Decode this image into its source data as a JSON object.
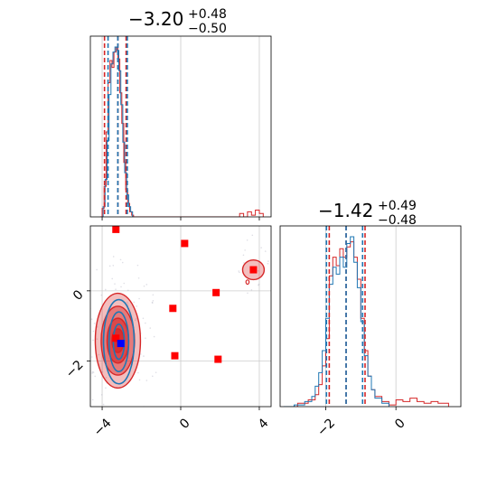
{
  "chart_data": {
    "type": "corner",
    "colors": {
      "blue": "#1f77b4",
      "red": "#d62728",
      "marker_red": "#ff0000",
      "marker_blue": "#0000ff",
      "grid": "#cccccc"
    },
    "params": [
      {
        "title_main": "−3.20",
        "title_sup": "+0.48",
        "title_sub": "−0.50",
        "range": [
          -4.6,
          4.6
        ]
      },
      {
        "title_main": "−1.42",
        "title_sup": "+0.49",
        "title_sub": "−0.48",
        "range": [
          -3.3,
          1.85
        ]
      }
    ],
    "x_ticks": {
      "p0": [
        {
          "v": -4,
          "label": "−4"
        },
        {
          "v": 0,
          "label": "0"
        },
        {
          "v": 4,
          "label": "4"
        }
      ],
      "p1": [
        {
          "v": -2,
          "label": "−2"
        },
        {
          "v": 0,
          "label": "0"
        }
      ]
    },
    "y_ticks": {
      "p1": [
        {
          "v": 0,
          "label": "0"
        },
        {
          "v": -2,
          "label": "−2"
        }
      ]
    },
    "grid": true,
    "hist_p0": {
      "blue_quantiles": [
        -3.7,
        -3.2,
        -2.72
      ],
      "red_quantiles": [
        -3.88,
        -3.2,
        -2.78
      ],
      "blue_bins": [
        [
          -4.0,
          0.0
        ],
        [
          -3.95,
          0.06
        ],
        [
          -3.85,
          0.22
        ],
        [
          -3.75,
          0.45
        ],
        [
          -3.65,
          0.72
        ],
        [
          -3.55,
          0.9
        ],
        [
          -3.45,
          0.97
        ],
        [
          -3.35,
          1.0
        ],
        [
          -3.25,
          0.98
        ],
        [
          -3.15,
          0.86
        ],
        [
          -3.05,
          0.66
        ],
        [
          -2.95,
          0.44
        ],
        [
          -2.85,
          0.26
        ],
        [
          -2.75,
          0.13
        ],
        [
          -2.65,
          0.06
        ],
        [
          -2.55,
          0.03
        ],
        [
          -2.45,
          0.0
        ]
      ],
      "red_bins": [
        [
          -4.1,
          0.0
        ],
        [
          -4.0,
          0.05
        ],
        [
          -3.9,
          0.18
        ],
        [
          -3.8,
          0.5
        ],
        [
          -3.7,
          0.79
        ],
        [
          -3.6,
          0.92
        ],
        [
          -3.5,
          0.88
        ],
        [
          -3.4,
          0.97
        ],
        [
          -3.3,
          1.0
        ],
        [
          -3.2,
          0.93
        ],
        [
          -3.1,
          0.73
        ],
        [
          -3.0,
          0.55
        ],
        [
          -2.9,
          0.32
        ],
        [
          -2.8,
          0.16
        ],
        [
          -2.7,
          0.08
        ],
        [
          -2.6,
          0.03
        ],
        [
          -2.5,
          0.01
        ],
        [
          -2.4,
          0.0
        ],
        [
          2.9,
          0.0
        ],
        [
          3.0,
          0.02
        ],
        [
          3.2,
          0.0
        ],
        [
          3.4,
          0.03
        ],
        [
          3.6,
          0.01
        ],
        [
          3.8,
          0.04
        ],
        [
          4.0,
          0.02
        ],
        [
          4.2,
          0.0
        ]
      ]
    },
    "hist_p1": {
      "blue_quantiles": [
        -1.98,
        -1.42,
        -0.95
      ],
      "red_quantiles": [
        -1.9,
        -1.42,
        -0.88
      ],
      "blue_bins": [
        [
          -3.2,
          0.0
        ],
        [
          -2.9,
          0.01
        ],
        [
          -2.6,
          0.03
        ],
        [
          -2.4,
          0.06
        ],
        [
          -2.3,
          0.12
        ],
        [
          -2.2,
          0.2
        ],
        [
          -2.1,
          0.33
        ],
        [
          -2.0,
          0.52
        ],
        [
          -1.9,
          0.72
        ],
        [
          -1.8,
          0.82
        ],
        [
          -1.7,
          0.78
        ],
        [
          -1.6,
          0.88
        ],
        [
          -1.5,
          0.82
        ],
        [
          -1.4,
          0.96
        ],
        [
          -1.3,
          1.0
        ],
        [
          -1.2,
          0.85
        ],
        [
          -1.1,
          0.7
        ],
        [
          -1.0,
          0.5
        ],
        [
          -0.9,
          0.3
        ],
        [
          -0.8,
          0.18
        ],
        [
          -0.7,
          0.1
        ],
        [
          -0.6,
          0.05
        ],
        [
          -0.4,
          0.02
        ],
        [
          -0.2,
          0.0
        ]
      ],
      "red_bins": [
        [
          -3.2,
          0.0
        ],
        [
          -2.8,
          0.02
        ],
        [
          -2.5,
          0.04
        ],
        [
          -2.3,
          0.07
        ],
        [
          -2.2,
          0.13
        ],
        [
          -2.1,
          0.24
        ],
        [
          -2.0,
          0.4
        ],
        [
          -1.9,
          0.77
        ],
        [
          -1.8,
          0.88
        ],
        [
          -1.7,
          0.83
        ],
        [
          -1.6,
          0.93
        ],
        [
          -1.5,
          0.88
        ],
        [
          -1.4,
          0.94
        ],
        [
          -1.3,
          0.97
        ],
        [
          -1.2,
          0.88
        ],
        [
          -1.1,
          0.75
        ],
        [
          -1.0,
          0.52
        ],
        [
          -0.9,
          0.33
        ],
        [
          -0.8,
          0.18
        ],
        [
          -0.7,
          0.1
        ],
        [
          -0.6,
          0.06
        ],
        [
          -0.4,
          0.03
        ],
        [
          -0.2,
          0.01
        ],
        [
          0.0,
          0.04
        ],
        [
          0.2,
          0.03
        ],
        [
          0.4,
          0.05
        ],
        [
          0.6,
          0.03
        ],
        [
          0.8,
          0.02
        ],
        [
          1.0,
          0.03
        ],
        [
          1.2,
          0.02
        ],
        [
          1.5,
          0.0
        ]
      ]
    },
    "scatter_2d": {
      "red_fill_levels": [
        {
          "cx": -3.2,
          "cy": -1.42,
          "rx": 1.15,
          "ry": 1.35,
          "opacity": 0.3
        },
        {
          "cx": -3.2,
          "cy": -1.42,
          "rx": 0.85,
          "ry": 0.98,
          "opacity": 0.45
        },
        {
          "cx": -3.2,
          "cy": -1.42,
          "rx": 0.55,
          "ry": 0.64,
          "opacity": 0.6
        },
        {
          "cx": -3.2,
          "cy": -1.42,
          "rx": 0.3,
          "ry": 0.34,
          "opacity": 0.75
        }
      ],
      "blue_levels": [
        {
          "cx": -3.15,
          "cy": -1.45,
          "rx": 0.78,
          "ry": 1.2
        },
        {
          "cx": -3.15,
          "cy": -1.45,
          "rx": 0.5,
          "ry": 0.85
        },
        {
          "cx": -3.15,
          "cy": -1.45,
          "rx": 0.28,
          "ry": 0.5
        }
      ],
      "side_blob": {
        "cx": 3.7,
        "cy": 0.6,
        "rx": 0.55,
        "ry": 0.28
      },
      "side_dot": {
        "cx": 3.4,
        "cy": 0.25,
        "rx": 0.08,
        "ry": 0.06
      },
      "red_markers": [
        [
          -3.3,
          1.75
        ],
        [
          0.2,
          1.35
        ],
        [
          1.8,
          -0.05
        ],
        [
          -0.4,
          -0.5
        ],
        [
          3.7,
          0.6
        ],
        [
          -3.3,
          -1.35
        ],
        [
          -0.3,
          -1.85
        ],
        [
          1.9,
          -1.95
        ]
      ],
      "blue_markers": [
        [
          -3.05,
          -1.5
        ]
      ]
    }
  }
}
